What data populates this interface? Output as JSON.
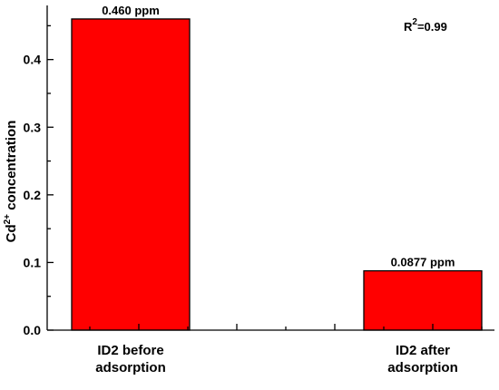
{
  "chart_data": {
    "type": "bar",
    "categories": [
      [
        "ID2 before",
        "adsorption"
      ],
      [
        "ID2 after",
        "adsorption"
      ]
    ],
    "values": [
      0.46,
      0.0877
    ],
    "data_labels": [
      "0.460 ppm",
      "0.0877 ppm"
    ],
    "ylabel": {
      "prefix": "Cd",
      "superscript": "2+",
      "suffix": " concentration"
    },
    "annotation": {
      "base": "R",
      "superscript": "2",
      "rest": "=0.99"
    },
    "ylim": [
      0,
      0.48
    ],
    "yticks": [
      0.0,
      0.1,
      0.2,
      0.3,
      0.4
    ],
    "ytick_labels": [
      "0.0",
      "0.1",
      "0.2",
      "0.3",
      "0.4"
    ],
    "grid": false,
    "bar_color": "#ff0000"
  }
}
